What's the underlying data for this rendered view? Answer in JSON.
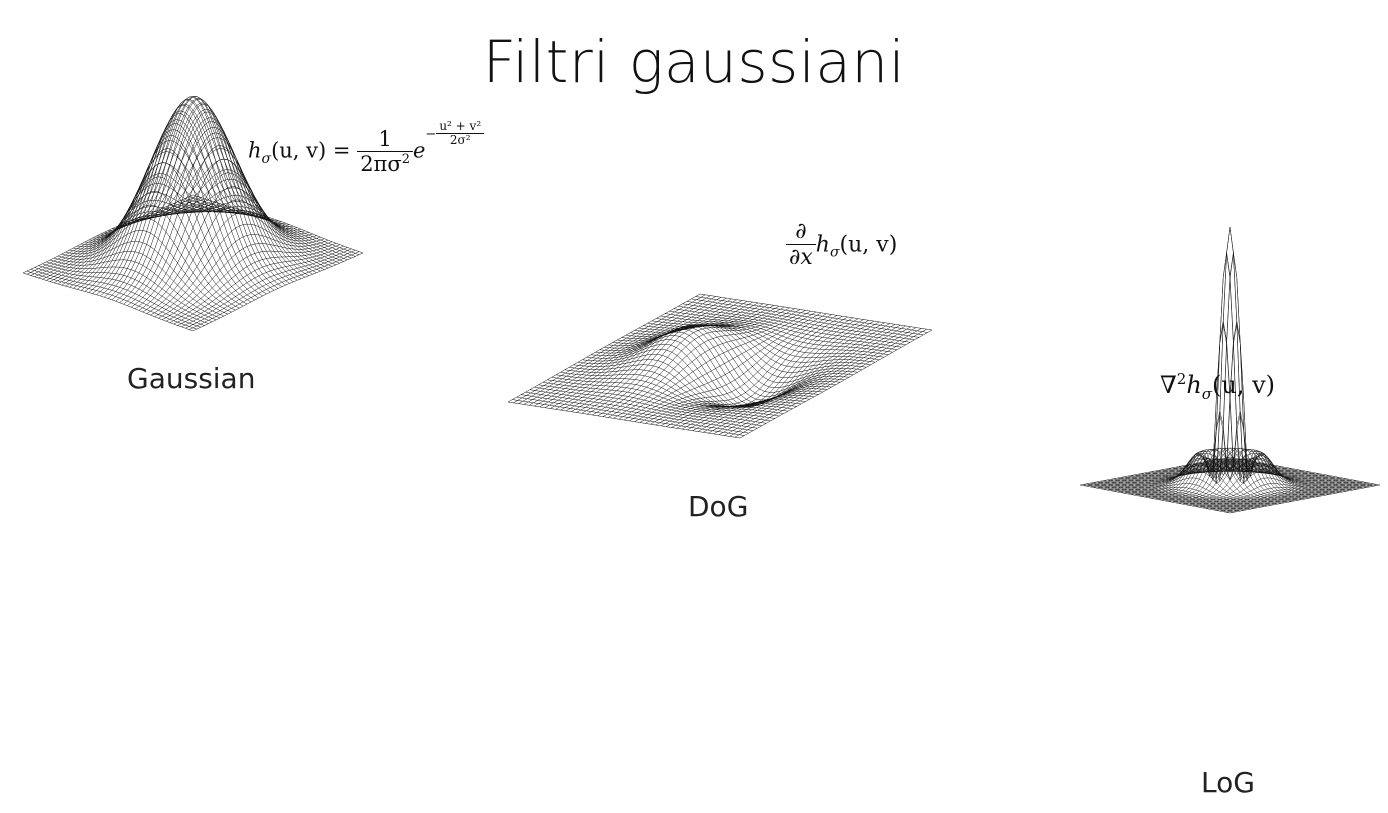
{
  "slide": {
    "title": "Filtri gaussiani"
  },
  "panels": [
    {
      "id": "gaussian",
      "caption": "Gaussian",
      "formula": {
        "lhs": "h",
        "sub": "σ",
        "args": "(u, v) =",
        "frac_num": "1",
        "frac_den": "2πσ",
        "frac_den_sup": "2",
        "base": "e",
        "exp_sign": "−",
        "exp_num": "u² + v²",
        "exp_den": "2σ²"
      }
    },
    {
      "id": "dog",
      "caption": "DoG",
      "formula": {
        "frac_num": "∂",
        "frac_den": "∂x",
        "lhs": "h",
        "sub": "σ",
        "args": "(u, v)"
      }
    },
    {
      "id": "log",
      "caption": "LoG",
      "formula": {
        "op": "∇",
        "op_sup": "2",
        "lhs": "h",
        "sub": "σ",
        "args": "(u, v)"
      }
    }
  ],
  "colors": {
    "mesh": "#111111",
    "background": "#ffffff"
  }
}
